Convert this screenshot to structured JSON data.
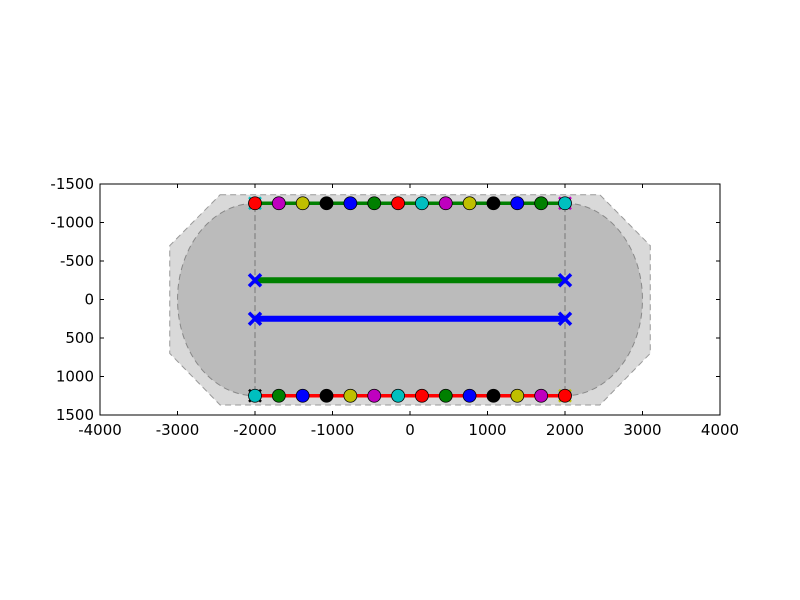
{
  "chart_data": {
    "type": "scatter",
    "title": "",
    "xlabel": "",
    "ylabel": "",
    "xlim": [
      -4000,
      4000
    ],
    "ylim": [
      1500,
      -1500
    ],
    "y_inverted": true,
    "grid": false,
    "xticks": [
      "-4000",
      "-3000",
      "-2000",
      "-1000",
      "0",
      "1000",
      "2000",
      "3000",
      "4000"
    ],
    "xtick_values": [
      -4000,
      -3000,
      -2000,
      -1000,
      0,
      1000,
      2000,
      3000,
      4000
    ],
    "yticks": [
      "-1500",
      "-1000",
      "-500",
      "0",
      "500",
      "1000",
      "1500"
    ],
    "ytick_values": [
      -1500,
      -1000,
      -500,
      0,
      500,
      1000,
      1500
    ],
    "regions": [
      {
        "kind": "outer-polygon",
        "fill": "#d9d9d9",
        "edge": "#999999",
        "points": [
          [
            -2450,
            -1360
          ],
          [
            2450,
            -1360
          ],
          [
            3100,
            -700
          ],
          [
            3100,
            700
          ],
          [
            2450,
            1370
          ],
          [
            -2450,
            1370
          ],
          [
            -3100,
            700
          ],
          [
            -3100,
            -700
          ]
        ]
      },
      {
        "kind": "inner-stadium",
        "fill": "#bbbbbb",
        "edge": "#888888",
        "x_range": [
          -2000,
          2000
        ],
        "y_range": [
          -1250,
          1250
        ],
        "end_radius_x": 1000
      }
    ],
    "vertical_dashed_lines": [
      -2000,
      2000
    ],
    "lines": [
      {
        "y": -250,
        "x": [
          -2000,
          2000
        ],
        "color": "#008000",
        "marker_color": "#0000ff"
      },
      {
        "y": 250,
        "x": [
          -2000,
          2000
        ],
        "color": "#0000ff",
        "marker_color": "#0000ff"
      }
    ],
    "marker_rows": [
      {
        "y": -1250,
        "line_color": "#008000",
        "x_range": [
          -2000,
          2000
        ],
        "colors": [
          "#ff0000",
          "#bf00bf",
          "#bfbf00",
          "#000000",
          "#0000ff",
          "#008000",
          "#ff0000",
          "#00bfbf",
          "#bf00bf",
          "#bfbf00",
          "#000000",
          "#0000ff",
          "#008000",
          "#00bfbf"
        ],
        "end_x_colors": [
          "#00bfbf",
          "#bf00bf"
        ]
      },
      {
        "y": 1250,
        "line_color": "#ff0000",
        "x_range": [
          -2000,
          2000
        ],
        "colors": [
          "#00bfbf",
          "#008000",
          "#0000ff",
          "#000000",
          "#bfbf00",
          "#bf00bf",
          "#00bfbf",
          "#ff0000",
          "#008000",
          "#0000ff",
          "#000000",
          "#bfbf00",
          "#bf00bf",
          "#ff0000"
        ],
        "end_x_colors": [
          "#000000",
          "#bfbf00"
        ]
      }
    ]
  }
}
